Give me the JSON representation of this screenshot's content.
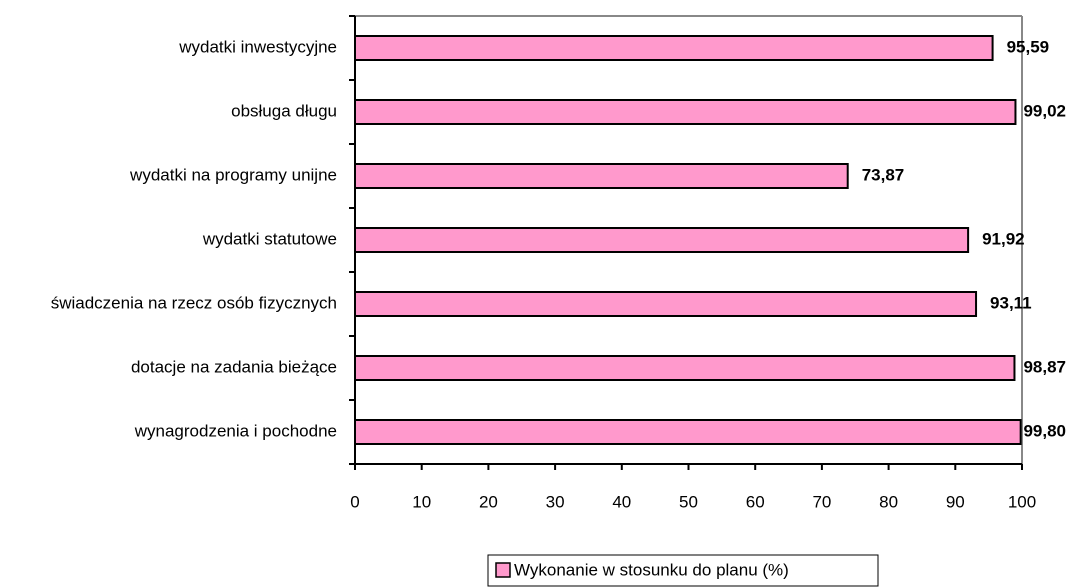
{
  "chart_data": {
    "type": "bar",
    "orientation": "horizontal",
    "categories": [
      "wydatki inwestycyjne",
      "obsługa długu",
      "wydatki na programy unijne",
      "wydatki statutowe",
      "świadczenia na rzecz osób fizycznych",
      "dotacje na zadania bieżące",
      "wynagrodzenia i pochodne"
    ],
    "series": [
      {
        "name": "Wykonanie w stosunku do planu (%)",
        "color": "#ff99cc",
        "values": [
          95.59,
          99.02,
          73.87,
          91.92,
          93.11,
          98.87,
          99.8
        ],
        "value_labels": [
          "95,59",
          "99,02",
          "73,87",
          "91,92",
          "93,11",
          "98,87",
          "99,80"
        ]
      }
    ],
    "xlim": [
      0,
      100
    ],
    "xticks": [
      0,
      10,
      20,
      30,
      40,
      50,
      60,
      70,
      80,
      90,
      100
    ],
    "legend": "bottom"
  }
}
